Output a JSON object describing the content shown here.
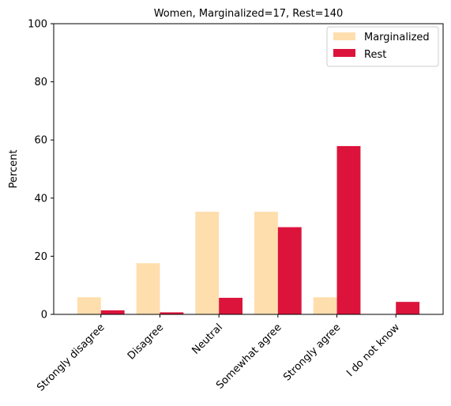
{
  "chart_data": {
    "type": "bar",
    "title": "Women, Marginalized=17, Rest=140",
    "xlabel": "",
    "ylabel": "Percent",
    "ylim": [
      0,
      100
    ],
    "yticks": [
      "0",
      "20",
      "40",
      "60",
      "80",
      "100"
    ],
    "categories": [
      "Strongly disagree",
      "Disagree",
      "Neutral",
      "Somewhat agree",
      "Strongly agree",
      "I do not know"
    ],
    "series": [
      {
        "name": "Marginalized",
        "color": "#ffdead",
        "values": [
          5.9,
          17.6,
          35.3,
          35.3,
          5.9,
          0
        ]
      },
      {
        "name": "Rest",
        "color": "#dc143c",
        "values": [
          1.4,
          0.7,
          5.7,
          30.0,
          57.9,
          4.3
        ]
      }
    ],
    "legend_position": "top-right",
    "grid": false
  }
}
